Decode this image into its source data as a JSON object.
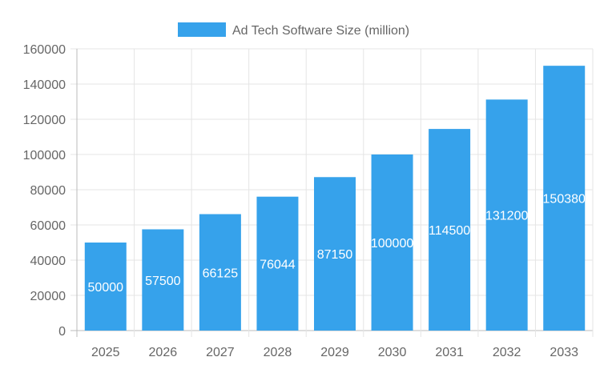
{
  "chart_data": {
    "type": "bar",
    "categories": [
      "2025",
      "2026",
      "2027",
      "2028",
      "2029",
      "2030",
      "2031",
      "2032",
      "2033"
    ],
    "series": [
      {
        "name": "Ad Tech Software Size (million)",
        "values": [
          50000,
          57500,
          66125,
          76044,
          87150,
          100000,
          114500,
          131200,
          150380
        ],
        "color": "#36A2EB"
      }
    ],
    "yticks": [
      0,
      20000,
      40000,
      60000,
      80000,
      100000,
      120000,
      140000,
      160000
    ],
    "ylim": [
      0,
      160000
    ],
    "grid": true,
    "legend": "top",
    "data_labels": true
  }
}
